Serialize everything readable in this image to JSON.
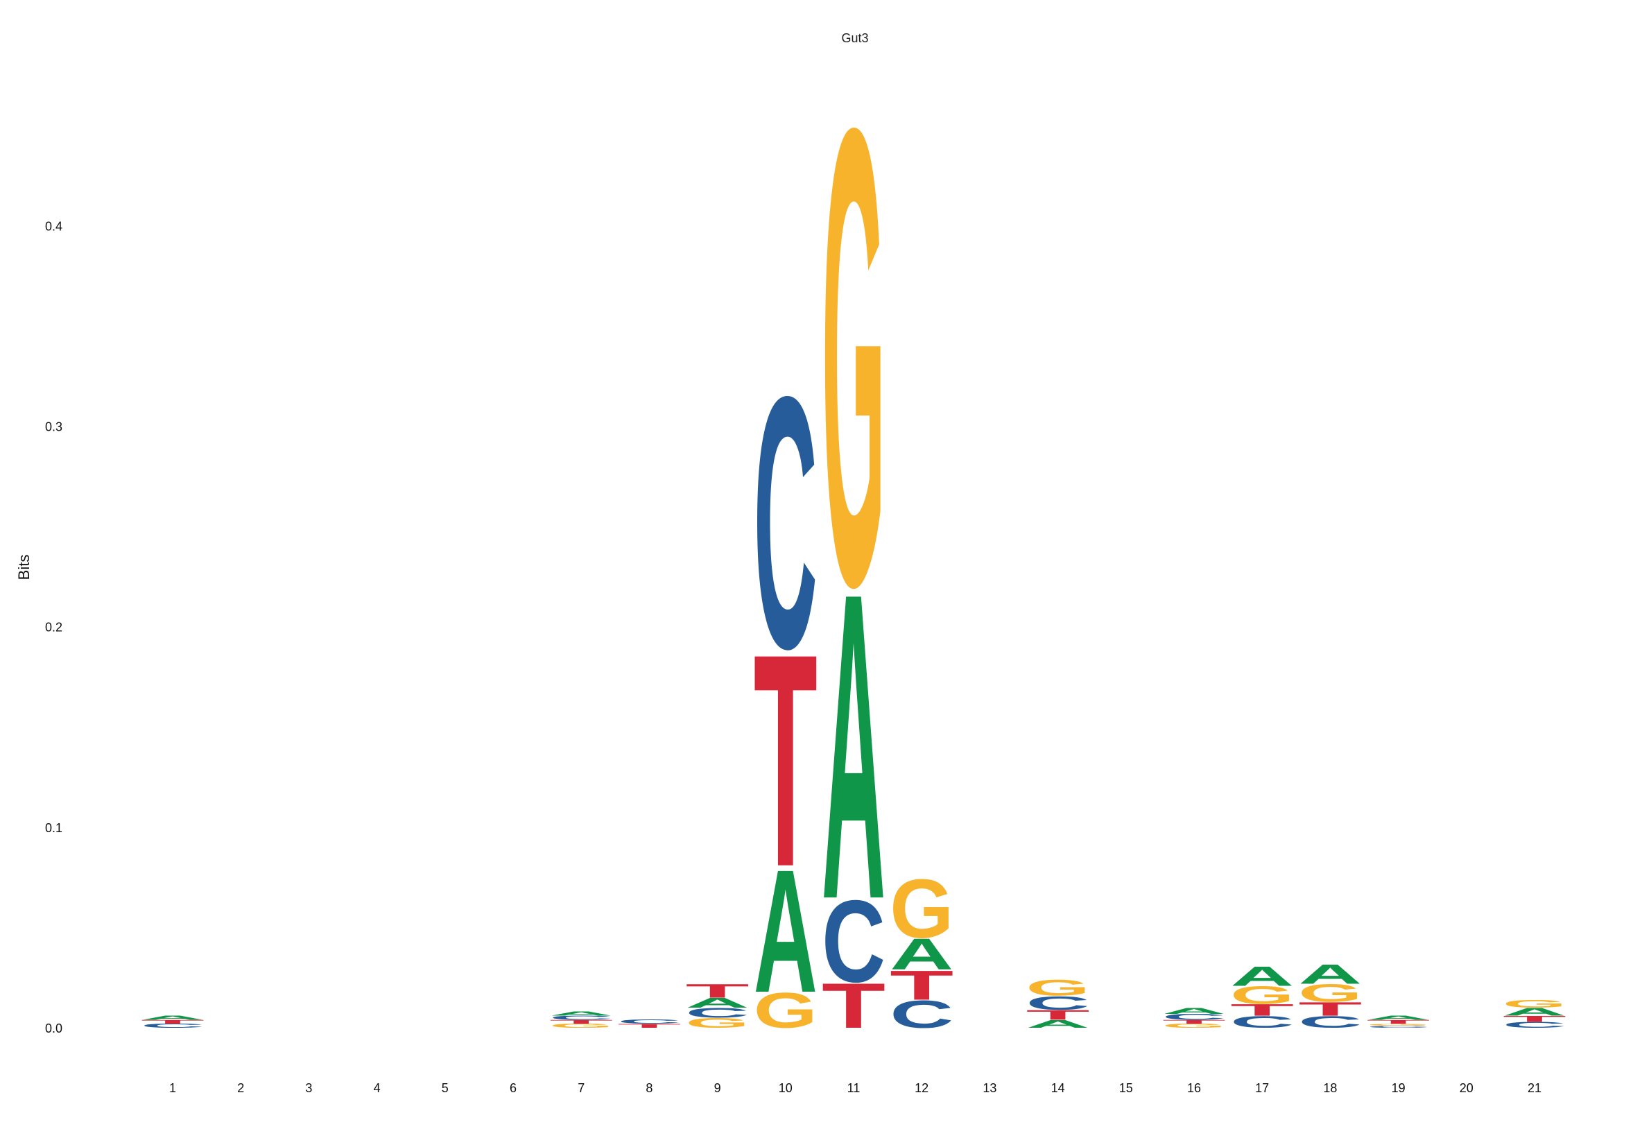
{
  "chart_data": {
    "type": "sequence-logo",
    "title": "Gut3",
    "ylabel": "Bits",
    "xlabel": "",
    "ylim": [
      0,
      0.46
    ],
    "yticks": [
      0.0,
      0.1,
      0.2,
      0.3,
      0.4
    ],
    "ytick_labels": [
      "0.0",
      "0.1",
      "0.2",
      "0.3",
      "0.4"
    ],
    "positions": [
      "1",
      "2",
      "3",
      "4",
      "5",
      "6",
      "7",
      "8",
      "9",
      "10",
      "11",
      "12",
      "13",
      "14",
      "15",
      "16",
      "17",
      "18",
      "19",
      "20",
      "21"
    ],
    "grid": false,
    "legend": "none",
    "colors": {
      "A": "#109648",
      "C": "#255C99",
      "G": "#F7B32B",
      "T": "#D62839"
    },
    "stacks": [
      [
        {
          "b": "C",
          "h": 0.002
        },
        {
          "b": "T",
          "h": 0.002
        },
        {
          "b": "A",
          "h": 0.002
        }
      ],
      [],
      [],
      [],
      [],
      [],
      [
        {
          "b": "G",
          "h": 0.002
        },
        {
          "b": "T",
          "h": 0.002
        },
        {
          "b": "C",
          "h": 0.002
        },
        {
          "b": "A",
          "h": 0.002
        }
      ],
      [
        {
          "b": "T",
          "h": 0.002
        },
        {
          "b": "C",
          "h": 0.002
        }
      ],
      [
        {
          "b": "G",
          "h": 0.005
        },
        {
          "b": "C",
          "h": 0.005
        },
        {
          "b": "A",
          "h": 0.005
        },
        {
          "b": "T",
          "h": 0.007
        }
      ],
      [
        {
          "b": "G",
          "h": 0.018
        },
        {
          "b": "A",
          "h": 0.063
        },
        {
          "b": "T",
          "h": 0.109
        },
        {
          "b": "C",
          "h": 0.129
        }
      ],
      [
        {
          "b": "T",
          "h": 0.023
        },
        {
          "b": "C",
          "h": 0.042
        },
        {
          "b": "A",
          "h": 0.157
        },
        {
          "b": "G",
          "h": 0.234
        }
      ],
      [
        {
          "b": "C",
          "h": 0.014
        },
        {
          "b": "T",
          "h": 0.015
        },
        {
          "b": "A",
          "h": 0.016
        },
        {
          "b": "G",
          "h": 0.03
        }
      ],
      [],
      [
        {
          "b": "A",
          "h": 0.004
        },
        {
          "b": "T",
          "h": 0.005
        },
        {
          "b": "C",
          "h": 0.007
        },
        {
          "b": "G",
          "h": 0.008
        }
      ],
      [],
      [
        {
          "b": "G",
          "h": 0.002
        },
        {
          "b": "T",
          "h": 0.002
        },
        {
          "b": "C",
          "h": 0.003
        },
        {
          "b": "A",
          "h": 0.003
        }
      ],
      [
        {
          "b": "C",
          "h": 0.006
        },
        {
          "b": "T",
          "h": 0.006
        },
        {
          "b": "G",
          "h": 0.009
        },
        {
          "b": "A",
          "h": 0.01
        }
      ],
      [
        {
          "b": "C",
          "h": 0.006
        },
        {
          "b": "T",
          "h": 0.007
        },
        {
          "b": "G",
          "h": 0.009
        },
        {
          "b": "A",
          "h": 0.01
        }
      ],
      [
        {
          "b": "C",
          "h": 0.001
        },
        {
          "b": "G",
          "h": 0.001
        },
        {
          "b": "T",
          "h": 0.002
        },
        {
          "b": "A",
          "h": 0.002
        }
      ],
      [],
      [
        {
          "b": "C",
          "h": 0.003
        },
        {
          "b": "T",
          "h": 0.003
        },
        {
          "b": "A",
          "h": 0.004
        },
        {
          "b": "G",
          "h": 0.004
        }
      ]
    ]
  }
}
